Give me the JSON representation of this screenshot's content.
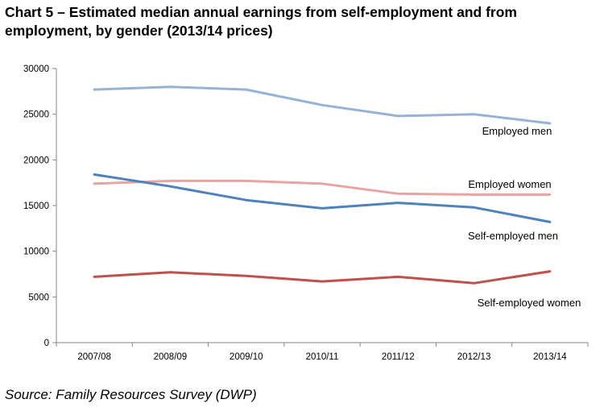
{
  "chart_data": {
    "type": "line",
    "title": "Chart 5 – Estimated median annual earnings from self-employment and from employment, by gender (2013/14 prices)",
    "xlabel": "",
    "ylabel": "",
    "categories": [
      "2007/08",
      "2008/09",
      "2009/10",
      "2010/11",
      "2011/12",
      "2012/13",
      "2013/14"
    ],
    "ylim": [
      0,
      30000
    ],
    "yticks": [
      "0",
      "5000",
      "10000",
      "15000",
      "20000",
      "25000",
      "30000"
    ],
    "grid": false,
    "legend": "inline labels beside each line",
    "series": [
      {
        "name": "Employed men",
        "color": "#95b3d7",
        "values": [
          27700,
          28000,
          27700,
          26000,
          24800,
          25000,
          24000
        ]
      },
      {
        "name": "Employed women",
        "color": "#e6a5a4",
        "values": [
          17400,
          17700,
          17700,
          17400,
          16300,
          16200,
          16200
        ]
      },
      {
        "name": "Self-employed men",
        "color": "#4f81bd",
        "values": [
          18400,
          17100,
          15600,
          14700,
          15300,
          14800,
          13200
        ]
      },
      {
        "name": "Self-employed women",
        "color": "#c0504d",
        "values": [
          7200,
          7700,
          7300,
          6700,
          7200,
          6500,
          7800
        ]
      }
    ]
  },
  "source": "Source: Family Resources Survey (DWP)"
}
